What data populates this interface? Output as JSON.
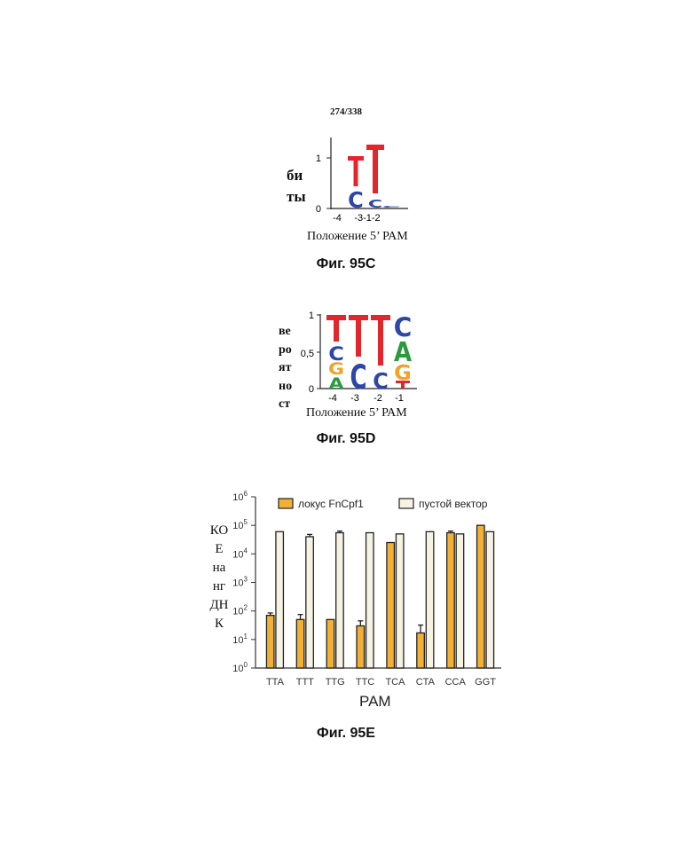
{
  "page_number": "274/338",
  "fig_c": {
    "caption": "Фиг. 95C",
    "ylabel_lines": [
      "би",
      "ты"
    ],
    "yticks": [
      "1",
      "0"
    ],
    "xticks": [
      "-4",
      "-3-1-2"
    ],
    "xlabel": "Положение 5’ РАМ"
  },
  "fig_d": {
    "caption": "Фиг. 95D",
    "ylabel_lines": [
      "ве",
      "ро",
      "ят",
      "но",
      "ст"
    ],
    "yticks": [
      "1",
      "0,5",
      "0"
    ],
    "xticks": [
      "-4",
      "-3",
      "-2",
      "-1"
    ],
    "xlabel": "Положение 5’ РАМ"
  },
  "fig_e": {
    "caption": "Фиг. 95E",
    "ylabel_lines": [
      "КО",
      "Е",
      "на",
      "нг",
      "ДН",
      "К"
    ],
    "xlabel": "PAM"
  },
  "chart_data": [
    {
      "type": "sequence-logo",
      "title": "",
      "xlabel": "Положение 5’ РАМ",
      "ylabel": "биты",
      "ylim": [
        0,
        1.3
      ],
      "positions": [
        "-4",
        "-3",
        "-1",
        "-2"
      ],
      "letters": [
        {
          "position": "-3",
          "stack": [
            {
              "letter": "C",
              "height": 0.3
            },
            {
              "letter": "T",
              "height": 0.7
            }
          ]
        },
        {
          "position": "-1",
          "stack": [
            {
              "letter": "C",
              "height": 0.25
            },
            {
              "letter": "T",
              "height": 1.0
            }
          ]
        },
        {
          "position": "-2",
          "stack": [
            {
              "letter": "C",
              "height": 0.06
            }
          ]
        }
      ]
    },
    {
      "type": "sequence-logo",
      "title": "",
      "xlabel": "Положение 5’ РАМ",
      "ylabel": "вероятность",
      "ylim": [
        0,
        1
      ],
      "positions": [
        "-4",
        "-3",
        "-2",
        "-1"
      ],
      "letters": [
        {
          "position": "-4",
          "stack": [
            {
              "letter": "A",
              "height": 0.15
            },
            {
              "letter": "G",
              "height": 0.2
            },
            {
              "letter": "C",
              "height": 0.25
            },
            {
              "letter": "T",
              "height": 0.4
            }
          ]
        },
        {
          "position": "-3",
          "stack": [
            {
              "letter": "C",
              "height": 0.4
            },
            {
              "letter": "T",
              "height": 0.6
            }
          ]
        },
        {
          "position": "-2",
          "stack": [
            {
              "letter": "C",
              "height": 0.3
            },
            {
              "letter": "T",
              "height": 0.7
            }
          ]
        },
        {
          "position": "-1",
          "stack": [
            {
              "letter": "T",
              "height": 0.1
            },
            {
              "letter": "G",
              "height": 0.25
            },
            {
              "letter": "A",
              "height": 0.35
            },
            {
              "letter": "C",
              "height": 0.3
            }
          ]
        }
      ]
    },
    {
      "type": "bar",
      "title": "",
      "xlabel": "PAM",
      "ylabel": "КОЕ на нг ДНК",
      "yscale": "log",
      "ylim": [
        1,
        1000000
      ],
      "ytick_labels": [
        "10^0",
        "10^1",
        "10^2",
        "10^3",
        "10^4",
        "10^5",
        "10^6"
      ],
      "legend_position": "top",
      "categories": [
        "TTA",
        "TTT",
        "TTG",
        "TTC",
        "TCA",
        "CTA",
        "CCA",
        "GGT"
      ],
      "series": [
        {
          "name": "локус FnCpf1",
          "color": "#f2b035",
          "values": [
            70,
            50,
            50,
            30,
            25000,
            17,
            55000,
            100000
          ],
          "errors": [
            15,
            25,
            0,
            15,
            0,
            15,
            8000,
            0
          ]
        },
        {
          "name": "пустой вектор",
          "color": "#f7f3e3",
          "values": [
            60000,
            40000,
            55000,
            55000,
            50000,
            60000,
            50000,
            60000
          ],
          "errors": [
            0,
            8000,
            8000,
            0,
            0,
            0,
            0,
            0
          ]
        }
      ]
    }
  ],
  "colors": {
    "T": "#e3262b",
    "C": "#2d46a8",
    "A": "#2a9a3e",
    "G": "#f0a22a",
    "bar_locus": "#f2b035",
    "bar_empty": "#f7f3e3"
  }
}
